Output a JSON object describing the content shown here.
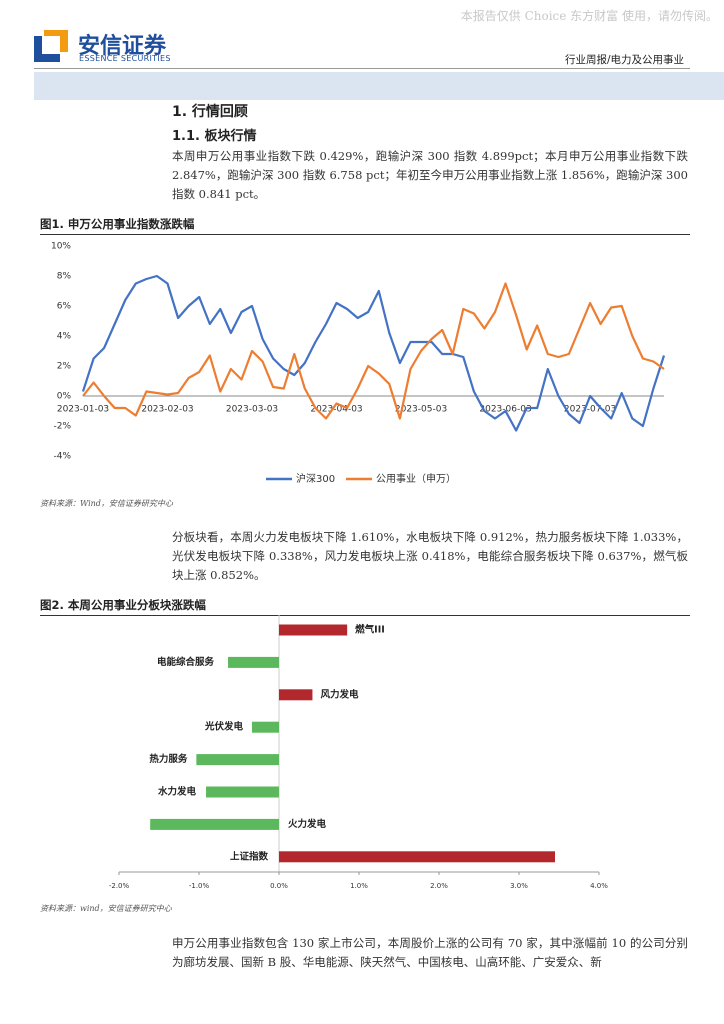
{
  "watermark": "本报告仅供 Choice 东方财富 使用，请勿传阅。",
  "logo": {
    "name": "安信证券",
    "english": "ESSENCE SECURITIES"
  },
  "header": {
    "report_type": "行业周报/电力及公用事业"
  },
  "section": {
    "title": "1. 行情回顾",
    "subtitle": "1.1. 板块行情"
  },
  "paragraphs": [
    "本周申万公用事业指数下跌 0.429%，跑输沪深 300 指数 4.899pct；本月申万公用事业指数下跌 2.847%，跑输沪深 300 指数 6.758 pct；年初至今申万公用事业指数上涨 1.856%，跑输沪深 300 指数 0.841 pct。",
    "分板块看，本周火力发电板块下降 1.610%，水电板块下降 0.912%，热力服务板块下降 1.033%，光伏发电板块下降 0.338%，风力发电板块上涨 0.418%，电能综合服务板块下降 0.637%，燃气板块上涨 0.852%。",
    "申万公用事业指数包含 130 家上市公司，本周股价上涨的公司有 70 家，其中涨幅前 10 的公司分别为廊坊发展、国新 B 股、华电能源、陕天然气、中国核电、山高环能、广安爱众、新"
  ],
  "sources": [
    "资料来源：Wind，安信证券研究中心",
    "资料来源：wind，安信证券研究中心"
  ],
  "chart_data": [
    {
      "type": "line",
      "title": "图1. 申万公用事业指数涨跌幅",
      "categories": [
        "2023-01-03",
        null,
        null,
        null,
        null,
        null,
        null,
        null,
        "2023-02-03",
        null,
        null,
        null,
        null,
        null,
        null,
        null,
        "2023-03-03",
        null,
        null,
        null,
        null,
        null,
        null,
        null,
        "2023-04-03",
        null,
        null,
        null,
        null,
        null,
        null,
        null,
        "2023-05-03",
        null,
        null,
        null,
        null,
        null,
        null,
        null,
        "2023-06-03",
        null,
        null,
        null,
        null,
        null,
        null,
        null,
        "2023-07-03",
        null,
        null,
        null,
        null,
        null,
        null,
        null
      ],
      "series": [
        {
          "name": "沪深300",
          "color": "#4472c4",
          "values": [
            0.3,
            2.5,
            3.2,
            4.8,
            6.4,
            7.5,
            7.8,
            8.0,
            7.5,
            5.2,
            6.0,
            6.6,
            4.8,
            5.8,
            4.2,
            5.6,
            6.0,
            3.8,
            2.5,
            1.8,
            1.4,
            2.2,
            3.6,
            4.8,
            6.2,
            5.8,
            5.2,
            5.6,
            7.0,
            4.2,
            2.2,
            3.6,
            3.6,
            3.6,
            2.8,
            2.8,
            2.6,
            0.3,
            -1.0,
            -1.5,
            -1.0,
            -2.3,
            -0.8,
            -0.8,
            1.8,
            0,
            -1.2,
            -1.8,
            0,
            -0.8,
            -1.5,
            0.2,
            -1.5,
            -2.0,
            0.5,
            2.7
          ]
        },
        {
          "name": "公用事业（申万）",
          "color": "#ed7d31",
          "values": [
            0,
            0.9,
            0,
            -0.8,
            -0.8,
            -1.3,
            0.3,
            0.2,
            0.1,
            0.2,
            1.2,
            1.6,
            2.7,
            0.3,
            1.8,
            1.1,
            3.0,
            2.3,
            0.6,
            0.5,
            2.8,
            0.5,
            -0.8,
            -1.5,
            -0.5,
            -0.8,
            0.5,
            2.0,
            1.5,
            0.8,
            -1.5,
            1.8,
            3.0,
            3.8,
            4.4,
            2.8,
            5.8,
            5.5,
            4.5,
            5.6,
            7.5,
            5.4,
            3.1,
            4.7,
            2.8,
            2.6,
            2.8,
            4.5,
            6.2,
            4.8,
            5.9,
            6.0,
            4.0,
            2.5,
            2.3,
            1.8
          ]
        }
      ],
      "ylim": [
        -4,
        10
      ],
      "yticks": [
        {
          "value": -4,
          "label": "-4%"
        },
        {
          "value": -2,
          "label": "-2%"
        },
        {
          "value": 0,
          "label": "0%"
        },
        {
          "value": 2,
          "label": "2%"
        },
        {
          "value": 4,
          "label": "4%"
        },
        {
          "value": 6,
          "label": "6%"
        },
        {
          "value": 8,
          "label": "8%"
        },
        {
          "value": 10,
          "label": "10%"
        }
      ],
      "grid": false,
      "legend": "bottom"
    },
    {
      "type": "hbar",
      "title": "图2. 本周公用事业分板块涨跌幅",
      "categories": [
        "燃气III",
        "电能综合服务",
        "风力发电",
        "光伏发电",
        "热力服务",
        "水力发电",
        "火力发电",
        "上证指数"
      ],
      "values": [
        0.852,
        -0.637,
        0.418,
        -0.338,
        -1.033,
        -0.912,
        -1.61,
        3.45
      ],
      "positive_color": "#b3282d",
      "negative_color": "#5cb85c",
      "xlim": [
        -2,
        4
      ],
      "xticks": [
        {
          "value": -2,
          "label": "-2.0%"
        },
        {
          "value": -1,
          "label": "-1.0%"
        },
        {
          "value": 0,
          "label": "0.0%"
        },
        {
          "value": 1,
          "label": "1.0%"
        },
        {
          "value": 2,
          "label": "2.0%"
        },
        {
          "value": 3,
          "label": "3.0%"
        },
        {
          "value": 4,
          "label": "4.0%"
        }
      ]
    }
  ]
}
